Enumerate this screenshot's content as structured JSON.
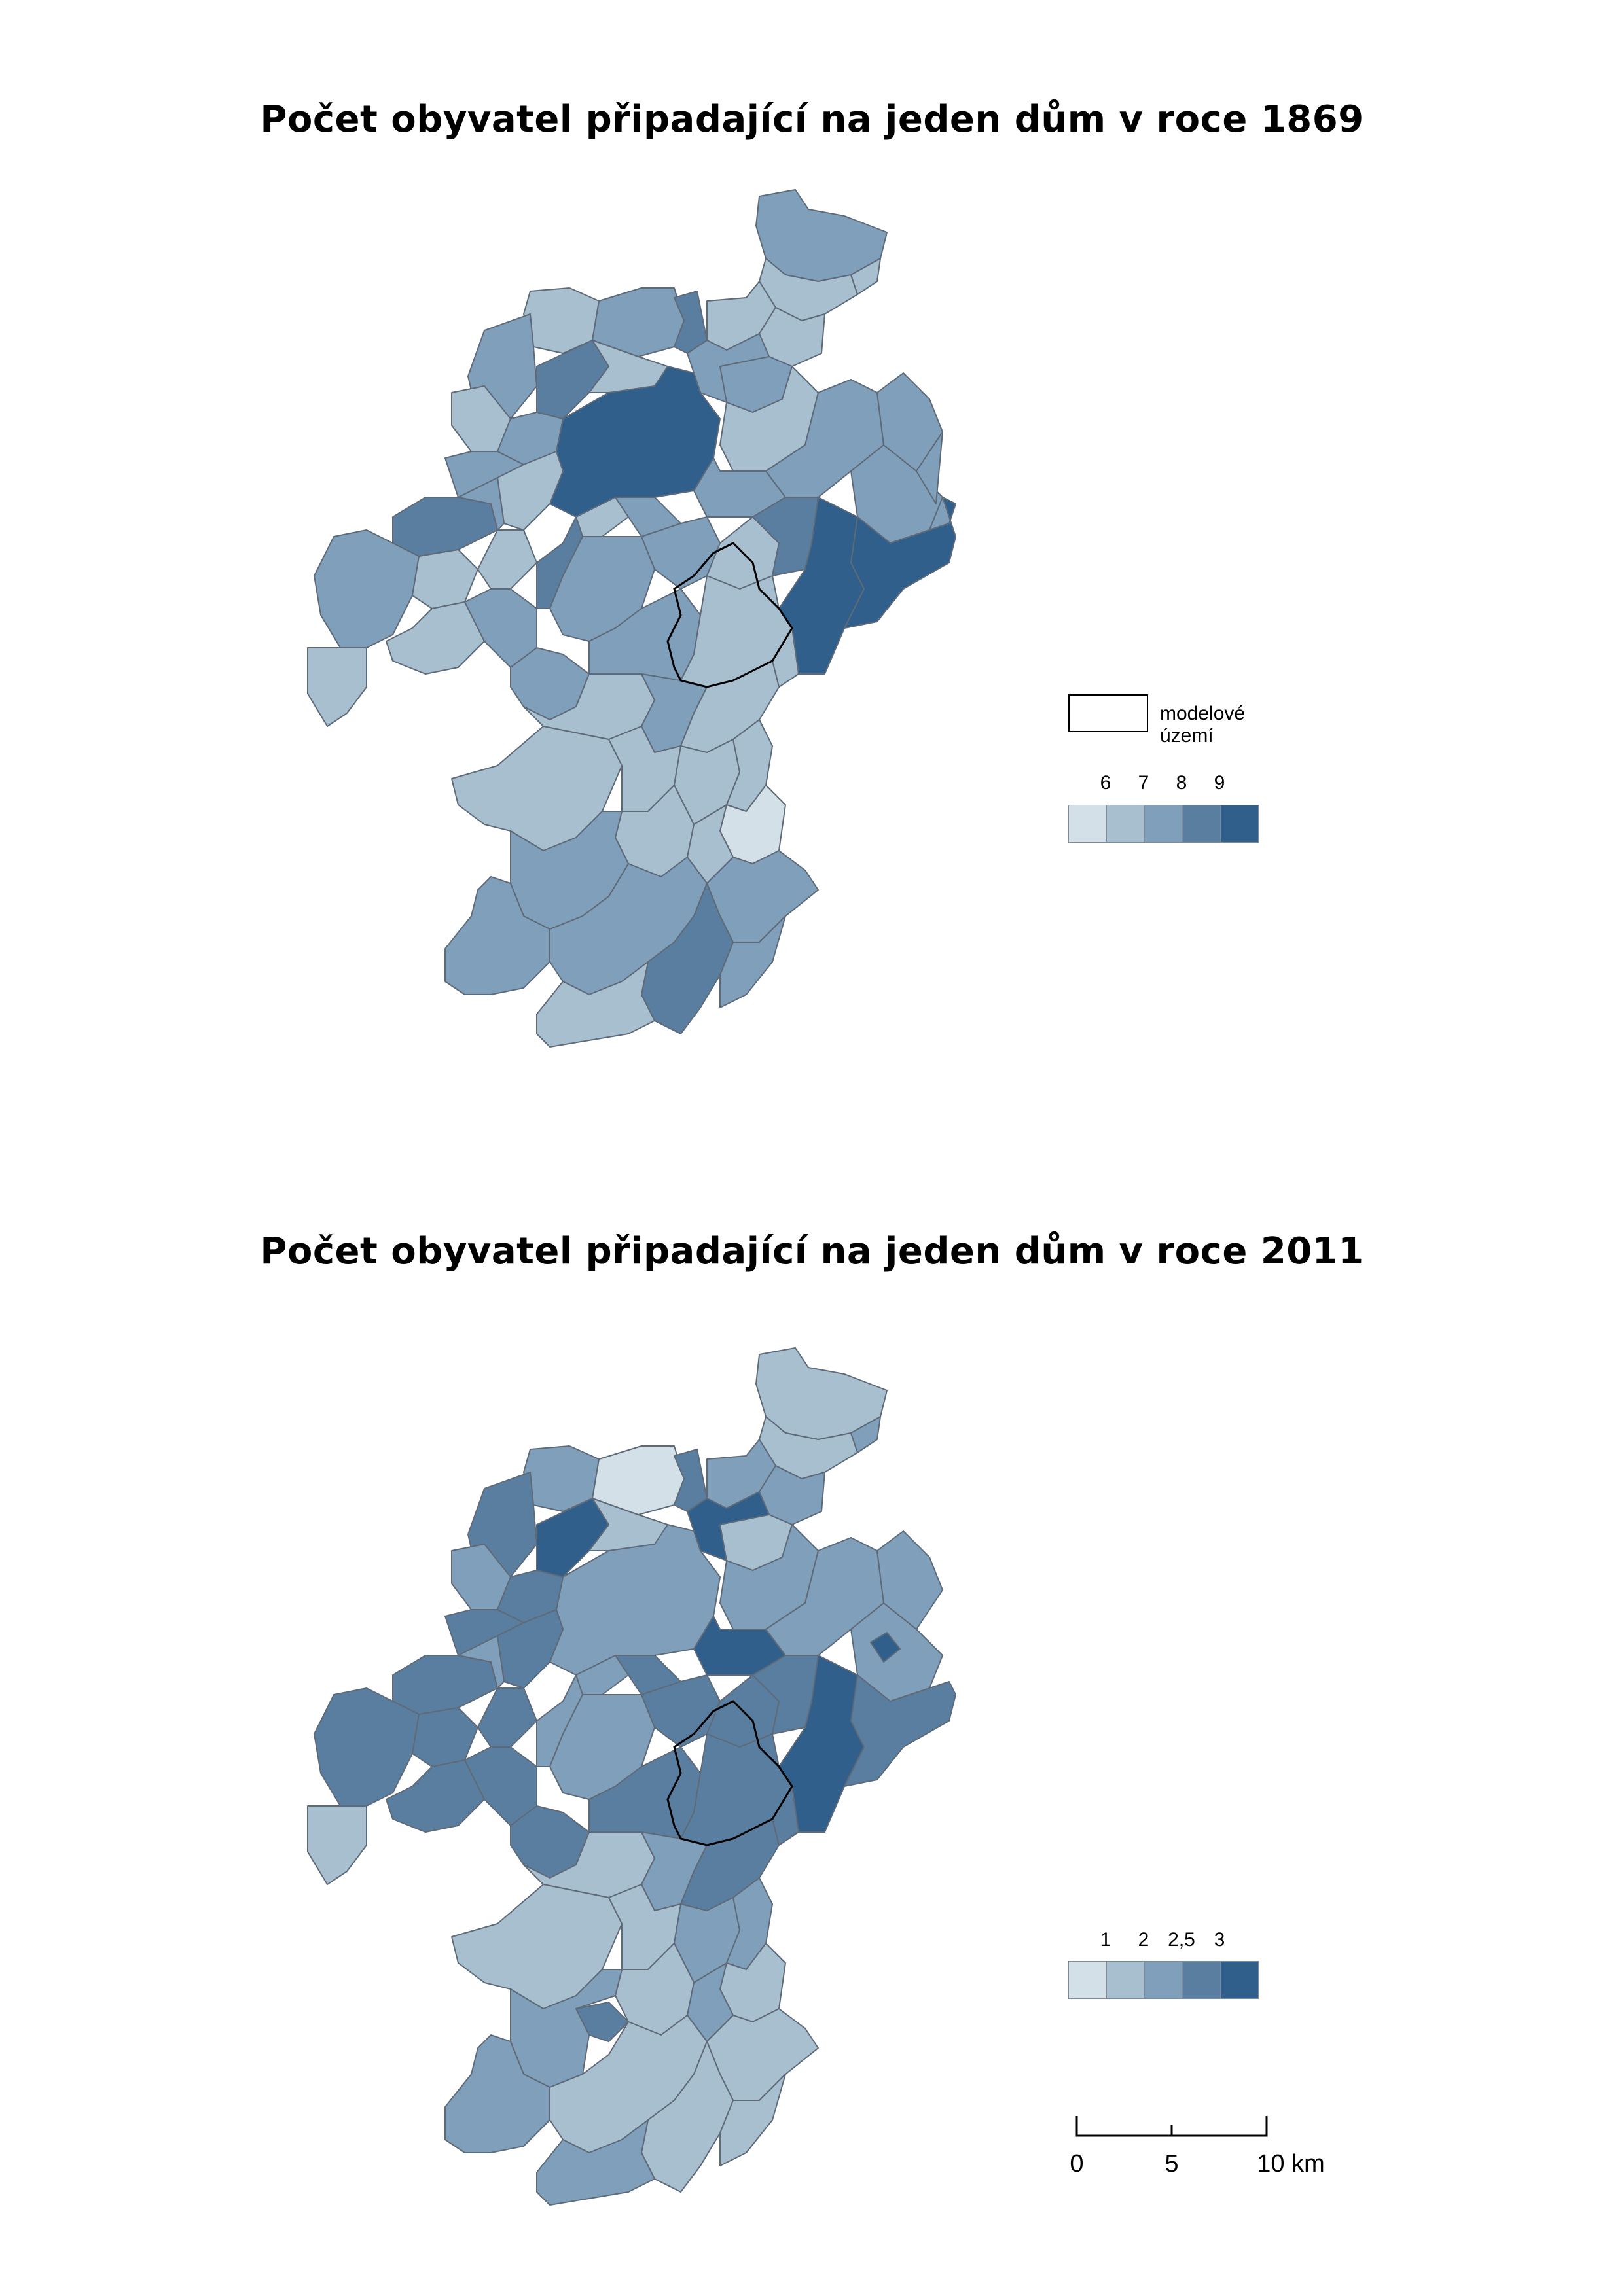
{
  "maps": [
    {
      "title": "Počet obyvatel připadající na jeden dům v roce 1869",
      "legend": {
        "model_area_label": "modelové území",
        "class_breaks": [
          "6",
          "7",
          "8",
          "9"
        ],
        "class_colors": [
          "#d3e0e8",
          "#a8bfd0",
          "#7f9fbb",
          "#5a7e9f",
          "#2f5f8a"
        ]
      }
    },
    {
      "title": "Počet obyvatel připadající na jeden dům v roce 2011",
      "legend": {
        "class_breaks": [
          "1",
          "2",
          "2,5",
          "3"
        ],
        "class_colors": [
          "#d3e0e8",
          "#a8bfd0",
          "#7f9fbb",
          "#5a7e9f",
          "#2f5f8a"
        ]
      }
    }
  ],
  "scalebar": {
    "ticks": [
      "0",
      "5",
      "10 km"
    ]
  }
}
